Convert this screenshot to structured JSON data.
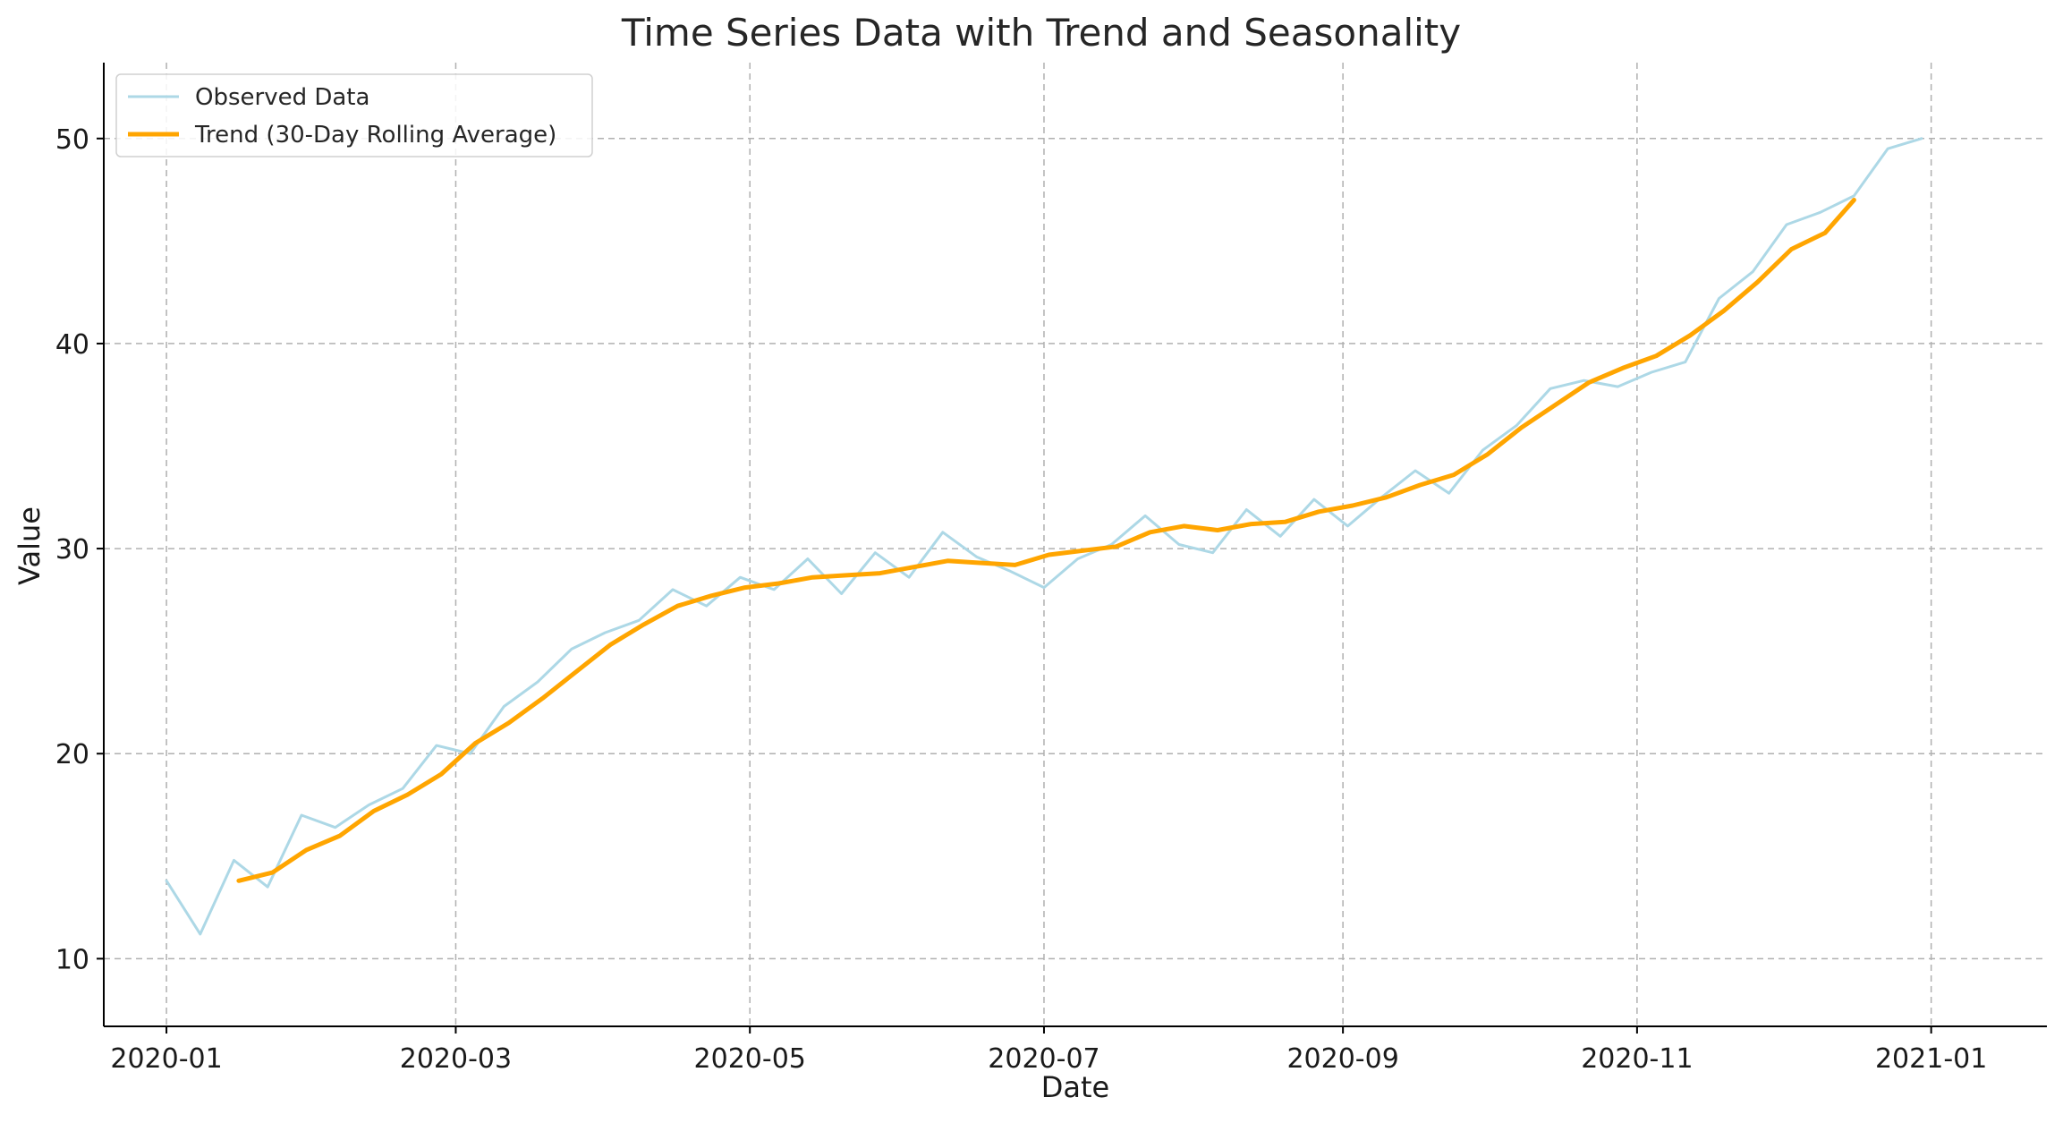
{
  "chart_data": {
    "type": "line",
    "title": "Time Series Data with Trend and Seasonality",
    "xlabel": "Date",
    "ylabel": "Value",
    "xlim": [
      "2019-12-19",
      "2021-01-25"
    ],
    "ylim": [
      6.7,
      53.7
    ],
    "x_ticks": [
      "2020-01",
      "2020-03",
      "2020-05",
      "2020-07",
      "2020-09",
      "2020-11",
      "2021-01"
    ],
    "x_tick_dates": [
      "2020-01-01",
      "2020-03-01",
      "2020-05-01",
      "2020-07-01",
      "2020-09-01",
      "2020-11-01",
      "2021-01-01"
    ],
    "y_ticks": [
      10,
      20,
      30,
      40,
      50
    ],
    "grid": true,
    "legend_position": "top-left",
    "series": [
      {
        "name": "Observed Data",
        "color": "#add8e6",
        "x": [
          "2020-01-01",
          "2020-01-08",
          "2020-01-15",
          "2020-01-22",
          "2020-01-29",
          "2020-02-05",
          "2020-02-12",
          "2020-02-19",
          "2020-02-26",
          "2020-03-04",
          "2020-03-11",
          "2020-03-18",
          "2020-03-25",
          "2020-04-01",
          "2020-04-08",
          "2020-04-15",
          "2020-04-22",
          "2020-04-29",
          "2020-05-06",
          "2020-05-13",
          "2020-05-20",
          "2020-05-27",
          "2020-06-03",
          "2020-06-10",
          "2020-06-17",
          "2020-06-24",
          "2020-07-01",
          "2020-07-08",
          "2020-07-15",
          "2020-07-22",
          "2020-07-29",
          "2020-08-05",
          "2020-08-12",
          "2020-08-19",
          "2020-08-26",
          "2020-09-02",
          "2020-09-09",
          "2020-09-16",
          "2020-09-23",
          "2020-09-30",
          "2020-10-07",
          "2020-10-14",
          "2020-10-21",
          "2020-10-28",
          "2020-11-04",
          "2020-11-11",
          "2020-11-18",
          "2020-11-25",
          "2020-12-02",
          "2020-12-09",
          "2020-12-16",
          "2020-12-23",
          "2020-12-30"
        ],
        "values": [
          13.8,
          11.2,
          14.8,
          13.5,
          17.0,
          16.4,
          17.5,
          18.3,
          20.4,
          20.0,
          22.3,
          23.5,
          25.1,
          25.9,
          26.5,
          28.0,
          27.2,
          28.6,
          28.0,
          29.5,
          27.8,
          29.8,
          28.6,
          30.8,
          29.6,
          28.9,
          28.1,
          29.5,
          30.2,
          31.6,
          30.2,
          29.8,
          31.9,
          30.6,
          32.4,
          31.1,
          32.5,
          33.8,
          32.7,
          34.8,
          36.0,
          37.8,
          38.2,
          37.9,
          38.6,
          39.1,
          42.2,
          43.5,
          45.8,
          46.4,
          47.2,
          49.5,
          50.0
        ]
      },
      {
        "name": "Trend (30-Day Rolling Average)",
        "color": "#ffa500",
        "x": [
          "2020-01-16",
          "2020-01-23",
          "2020-01-30",
          "2020-02-06",
          "2020-02-13",
          "2020-02-20",
          "2020-02-27",
          "2020-03-05",
          "2020-03-12",
          "2020-03-19",
          "2020-03-26",
          "2020-04-02",
          "2020-04-09",
          "2020-04-16",
          "2020-04-23",
          "2020-04-30",
          "2020-05-07",
          "2020-05-14",
          "2020-05-21",
          "2020-05-28",
          "2020-06-04",
          "2020-06-11",
          "2020-06-18",
          "2020-06-25",
          "2020-07-02",
          "2020-07-09",
          "2020-07-16",
          "2020-07-23",
          "2020-07-30",
          "2020-08-06",
          "2020-08-13",
          "2020-08-20",
          "2020-08-27",
          "2020-09-03",
          "2020-09-10",
          "2020-09-17",
          "2020-09-24",
          "2020-10-01",
          "2020-10-08",
          "2020-10-15",
          "2020-10-22",
          "2020-10-29",
          "2020-11-05",
          "2020-11-12",
          "2020-11-19",
          "2020-11-26",
          "2020-12-03",
          "2020-12-10",
          "2020-12-16"
        ],
        "values": [
          13.8,
          14.2,
          15.3,
          16.0,
          17.2,
          18.0,
          19.0,
          20.5,
          21.5,
          22.7,
          24.0,
          25.3,
          26.3,
          27.2,
          27.7,
          28.1,
          28.3,
          28.6,
          28.7,
          28.8,
          29.1,
          29.4,
          29.3,
          29.2,
          29.7,
          29.9,
          30.1,
          30.8,
          31.1,
          30.9,
          31.2,
          31.3,
          31.8,
          32.1,
          32.5,
          33.1,
          33.6,
          34.6,
          35.9,
          37.0,
          38.1,
          38.8,
          39.4,
          40.4,
          41.6,
          43.0,
          44.6,
          45.4,
          47.0
        ]
      }
    ]
  }
}
